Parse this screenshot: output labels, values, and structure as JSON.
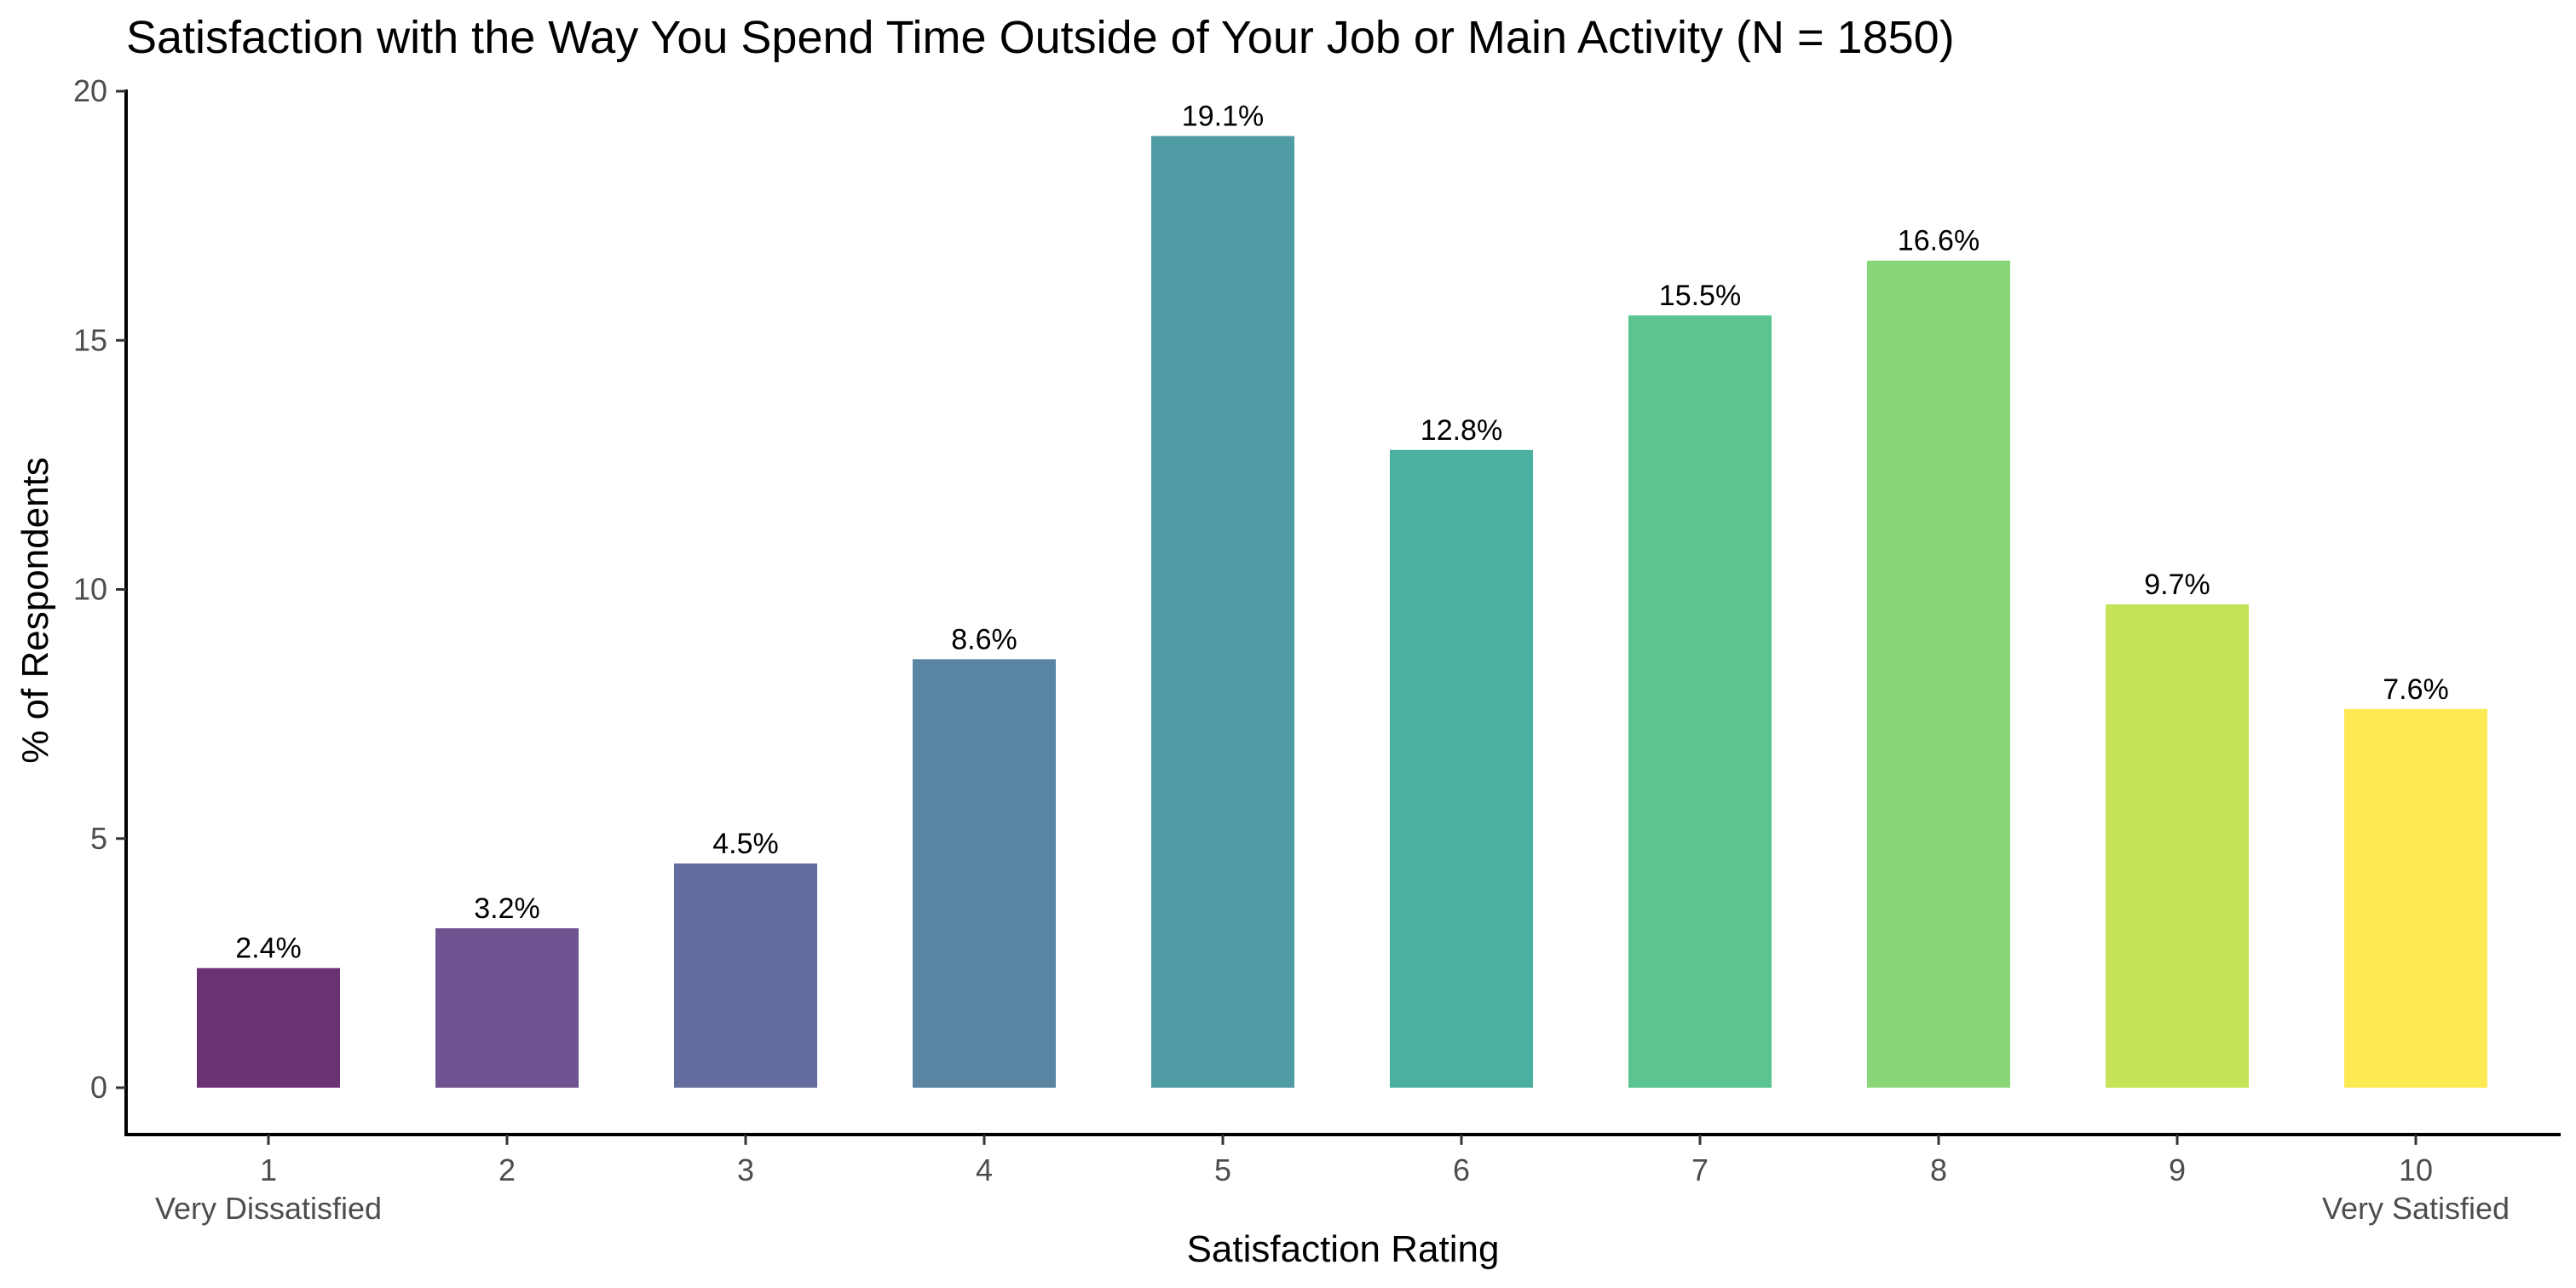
{
  "chart_data": {
    "type": "bar",
    "title": "Satisfaction with the Way You Spend Time Outside of Your Job or Main Activity (N = 1850)",
    "xlabel": "Satisfaction Rating",
    "ylabel": "% of Respondents",
    "categories": [
      "1",
      "2",
      "3",
      "4",
      "5",
      "6",
      "7",
      "8",
      "9",
      "10"
    ],
    "category_sublabels": [
      "Very Dissatisfied",
      "",
      "",
      "",
      "",
      "",
      "",
      "",
      "",
      "Very Satisfied"
    ],
    "values": [
      2.4,
      3.2,
      4.5,
      8.6,
      19.1,
      12.8,
      15.5,
      16.6,
      9.7,
      7.6
    ],
    "data_labels": [
      "2.4%",
      "3.2%",
      "4.5%",
      "8.6%",
      "19.1%",
      "12.8%",
      "15.5%",
      "16.6%",
      "9.7%",
      "7.6%"
    ],
    "colors": [
      "#6a3173",
      "#6f5390",
      "#656c9e",
      "#5985a3",
      "#509ca5",
      "#4cb0a0",
      "#5bc490",
      "#89d678",
      "#c5e356",
      "#fdea52"
    ],
    "ylim": [
      0,
      20
    ],
    "yticks": [
      0,
      5,
      10,
      15,
      20
    ],
    "ytick_labels": [
      "0",
      "5",
      "10",
      "15",
      "20"
    ],
    "grid": false,
    "legend": "none"
  }
}
